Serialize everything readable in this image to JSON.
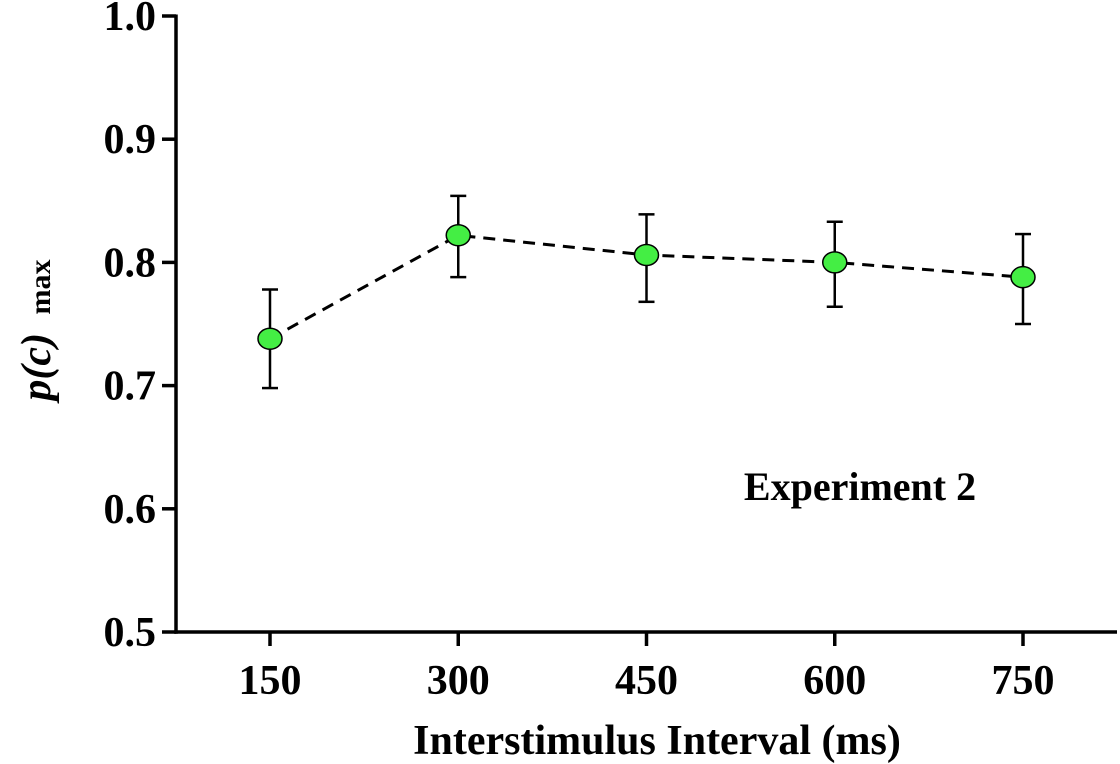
{
  "chart_data": {
    "type": "line",
    "title": "",
    "xlabel": "Interstimulus Interval (ms)",
    "ylabel": {
      "main": "p(c)",
      "subscript": "max"
    },
    "annotation": "Experiment 2",
    "x": [
      150,
      300,
      450,
      600,
      750
    ],
    "x_tick_labels": [
      "150",
      "300",
      "450",
      "600",
      "750"
    ],
    "y_ticks": [
      0.5,
      0.6,
      0.7,
      0.8,
      0.9,
      1.0
    ],
    "y_tick_labels": [
      "0.5",
      "0.6",
      "0.7",
      "0.8",
      "0.9",
      "1.0"
    ],
    "ylim": [
      0.5,
      1.0
    ],
    "series": [
      {
        "values": [
          0.738,
          0.822,
          0.806,
          0.8,
          0.788
        ],
        "error_upper": [
          0.778,
          0.854,
          0.839,
          0.833,
          0.823
        ],
        "error_lower": [
          0.698,
          0.788,
          0.768,
          0.764,
          0.75
        ],
        "color": "#44ee44",
        "line_style": "dashed"
      }
    ],
    "grid": false,
    "legend": "none"
  }
}
